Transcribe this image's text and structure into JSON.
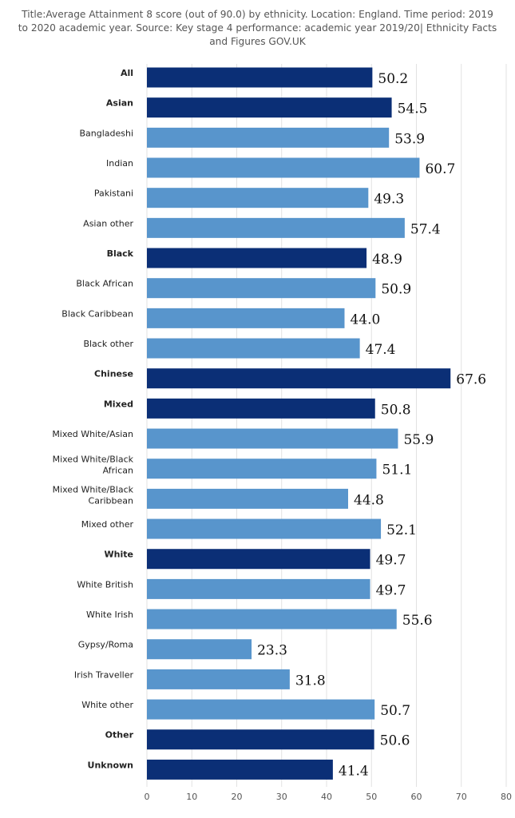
{
  "chart_data": {
    "type": "bar",
    "orientation": "horizontal",
    "title": "Title:Average Attainment 8 score (out of 90.0) by ethnicity. Location: England. Time period: 2019 to 2020 academic year. Source: Key stage 4 performance: academic year 2019/20| Ethnicity Facts and Figures GOV.UK",
    "categories": [
      "All",
      "Asian",
      "Bangladeshi",
      "Indian",
      "Pakistani",
      "Asian other",
      "Black",
      "Black African",
      "Black Caribbean",
      "Black other",
      "Chinese",
      "Mixed",
      "Mixed White/Asian",
      "Mixed White/Black African",
      "Mixed White/Black Caribbean",
      "Mixed other",
      "White",
      "White British",
      "White Irish",
      "Gypsy/Roma",
      "Irish Traveller",
      "White other",
      "Other",
      "Unknown"
    ],
    "values": [
      50.2,
      54.5,
      53.9,
      60.7,
      49.3,
      57.4,
      48.9,
      50.9,
      44.0,
      47.4,
      67.6,
      50.8,
      55.9,
      51.1,
      44.8,
      52.1,
      49.7,
      49.7,
      55.6,
      23.3,
      31.8,
      50.7,
      50.6,
      41.4
    ],
    "value_labels": [
      "50.2",
      "54.5",
      "53.9",
      "60.7",
      "49.3",
      "57.4",
      "48.9",
      "50.9",
      "44.0",
      "47.4",
      "67.6",
      "50.8",
      "55.9",
      "51.1",
      "44.8",
      "52.1",
      "49.7",
      "49.7",
      "55.6",
      "23.3",
      "31.8",
      "50.7",
      "50.6",
      "41.4"
    ],
    "is_group_total": [
      true,
      true,
      false,
      false,
      false,
      false,
      true,
      false,
      false,
      false,
      true,
      true,
      false,
      false,
      false,
      false,
      true,
      false,
      false,
      false,
      false,
      false,
      true,
      true
    ],
    "xlim": [
      0,
      80
    ],
    "xticks": [
      0,
      10,
      20,
      30,
      40,
      50,
      60,
      70,
      80
    ],
    "xtick_labels": [
      "0",
      "10",
      "20",
      "30",
      "40",
      "50",
      "60",
      "70",
      "80"
    ],
    "grid": true,
    "legend": "none",
    "colors": {
      "group_total": "#0b2f76",
      "subgroup": "#5895cc",
      "grid": "#e2e2e2"
    }
  }
}
